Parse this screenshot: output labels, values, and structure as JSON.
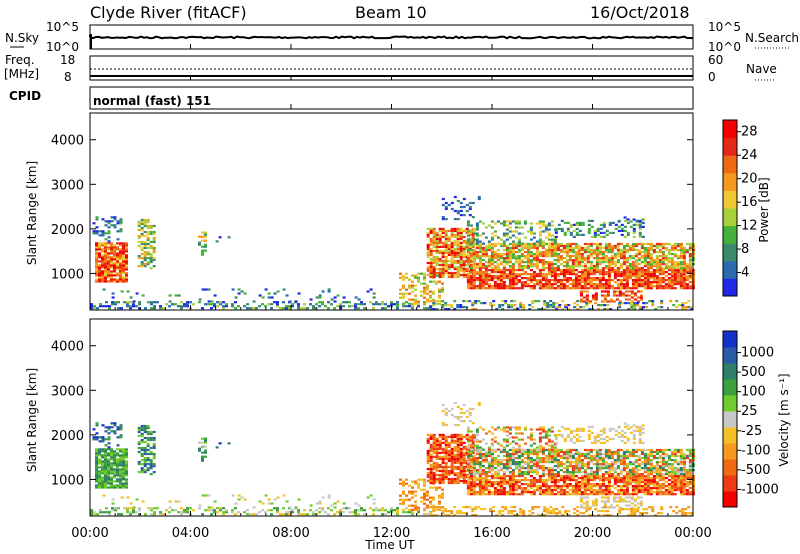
{
  "header": {
    "station": "Clyde River (fitACF)",
    "beam": "Beam 10",
    "date": "16/Oct/2018"
  },
  "aux_panels": {
    "nsky": {
      "label": "N.Sky",
      "top_tick": "10^5",
      "bottom_tick": "10^0"
    },
    "nsearch": {
      "label": "N.Search",
      "top_tick": "10^5",
      "bottom_tick": "10^0"
    },
    "freq": {
      "label_line1": "Freq.",
      "label_line2": "[MHz]",
      "top_tick": "18",
      "bottom_tick": "8"
    },
    "nave": {
      "label": "Nave",
      "top_tick": "60",
      "bottom_tick": "0"
    },
    "cpid": {
      "label": "CPID",
      "value": "normal (fast) 151"
    }
  },
  "time_axis": {
    "xlabel": "Time UT",
    "ticks": [
      "00:00",
      "04:00",
      "08:00",
      "12:00",
      "16:00",
      "20:00",
      "00:00"
    ]
  },
  "colors": {
    "power_scale": [
      "#1e28e6",
      "#2a6ab0",
      "#3c8a6c",
      "#46b03c",
      "#a8d03a",
      "#f0c832",
      "#f59a1c",
      "#f06a14",
      "#e62818",
      "#f50000"
    ],
    "velocity_scale": [
      "#1432c8",
      "#2a5aa8",
      "#2e7e6a",
      "#3ca040",
      "#70cc2c",
      "#c8c8c8",
      "#f5c026",
      "#f59a1c",
      "#f06a14",
      "#f03a14",
      "#f50000"
    ]
  },
  "chart_data": [
    {
      "type": "heatmap",
      "name": "power",
      "ylabel": "Slant Range [km]",
      "yticks": [
        "1000",
        "2000",
        "3000",
        "4000"
      ],
      "xlabel": "Time UT",
      "xlim_hours": [
        0,
        24
      ],
      "ylim_km": [
        180,
        4600
      ],
      "colorbar": {
        "label": "Power [dB]",
        "ticks": [
          "4",
          "8",
          "12",
          "16",
          "20",
          "24",
          "28"
        ],
        "range": [
          0,
          30
        ]
      }
    },
    {
      "type": "heatmap",
      "name": "velocity",
      "ylabel": "Slant Range [km]",
      "yticks": [
        "1000",
        "2000",
        "3000",
        "4000"
      ],
      "xlabel": "Time UT",
      "xlim_hours": [
        0,
        24
      ],
      "ylim_km": [
        180,
        4600
      ],
      "colorbar": {
        "label": "Velocity [m s⁻¹]",
        "ticks": [
          "1000",
          "500",
          "100",
          "25",
          "-25",
          "-100",
          "-500",
          "-1000"
        ]
      }
    }
  ]
}
